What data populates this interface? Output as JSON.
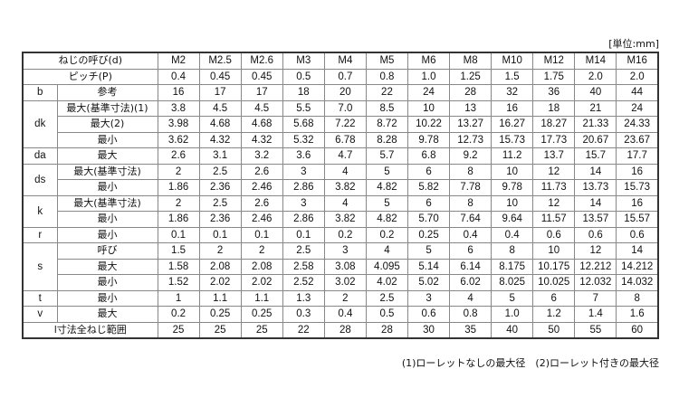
{
  "unit_label": "[単位:mm]",
  "header": {
    "label": "ねじの呼び(d)",
    "sizes": [
      "M2",
      "M2.5",
      "M2.6",
      "M3",
      "M4",
      "M5",
      "M6",
      "M8",
      "M10",
      "M12",
      "M14",
      "M16"
    ]
  },
  "pitch": {
    "label": "ピッチ(P)",
    "values": [
      "0.4",
      "0.45",
      "0.45",
      "0.5",
      "0.7",
      "0.8",
      "1.0",
      "1.25",
      "1.5",
      "1.75",
      "2.0",
      "2.0"
    ]
  },
  "groups": [
    {
      "symbol": "b",
      "rows": [
        {
          "label": "参考",
          "values": [
            "16",
            "17",
            "17",
            "18",
            "20",
            "22",
            "24",
            "28",
            "32",
            "36",
            "40",
            "44"
          ]
        }
      ]
    },
    {
      "symbol": "dk",
      "rows": [
        {
          "label": "最大(基準寸法)(1)",
          "values": [
            "3.8",
            "4.5",
            "4.5",
            "5.5",
            "7.0",
            "8.5",
            "10",
            "13",
            "16",
            "18",
            "21",
            "24"
          ]
        },
        {
          "label": "最大(2)",
          "values": [
            "3.98",
            "4.68",
            "4.68",
            "5.68",
            "7.22",
            "8.72",
            "10.22",
            "13.27",
            "16.27",
            "18.27",
            "21.33",
            "24.33"
          ]
        },
        {
          "label": "最小",
          "values": [
            "3.62",
            "4.32",
            "4.32",
            "5.32",
            "6.78",
            "8.28",
            "9.78",
            "12.73",
            "15.73",
            "17.73",
            "20.67",
            "23.67"
          ]
        }
      ]
    },
    {
      "symbol": "da",
      "rows": [
        {
          "label": "最大",
          "values": [
            "2.6",
            "3.1",
            "3.2",
            "3.6",
            "4.7",
            "5.7",
            "6.8",
            "9.2",
            "11.2",
            "13.7",
            "15.7",
            "17.7"
          ]
        }
      ]
    },
    {
      "symbol": "ds",
      "rows": [
        {
          "label": "最大(基準寸法)",
          "values": [
            "2",
            "2.5",
            "2.6",
            "3",
            "4",
            "5",
            "6",
            "8",
            "10",
            "12",
            "14",
            "16"
          ]
        },
        {
          "label": "最小",
          "values": [
            "1.86",
            "2.36",
            "2.46",
            "2.86",
            "3.82",
            "4.82",
            "5.82",
            "7.78",
            "9.78",
            "11.73",
            "13.73",
            "15.73"
          ]
        }
      ]
    },
    {
      "symbol": "k",
      "rows": [
        {
          "label": "最大(基準寸法)",
          "values": [
            "2",
            "2.5",
            "2.6",
            "3",
            "4",
            "5",
            "6",
            "8",
            "10",
            "12",
            "14",
            "16"
          ]
        },
        {
          "label": "最小",
          "values": [
            "1.86",
            "2.36",
            "2.46",
            "2.86",
            "3.82",
            "4.82",
            "5.70",
            "7.64",
            "9.64",
            "11.57",
            "13.57",
            "15.57"
          ]
        }
      ]
    },
    {
      "symbol": "r",
      "rows": [
        {
          "label": "最小",
          "values": [
            "0.1",
            "0.1",
            "0.1",
            "0.1",
            "0.2",
            "0.2",
            "0.25",
            "0.4",
            "0.4",
            "0.6",
            "0.6",
            "0.6"
          ]
        }
      ]
    },
    {
      "symbol": "s",
      "rows": [
        {
          "label": "呼び",
          "values": [
            "1.5",
            "2",
            "2",
            "2.5",
            "3",
            "4",
            "5",
            "6",
            "8",
            "10",
            "12",
            "14"
          ]
        },
        {
          "label": "最大",
          "values": [
            "1.58",
            "2.08",
            "2.08",
            "2.58",
            "3.08",
            "4.095",
            "5.14",
            "6.14",
            "8.175",
            "10.175",
            "12.212",
            "14.212"
          ]
        },
        {
          "label": "最小",
          "values": [
            "1.52",
            "2.02",
            "2.02",
            "2.52",
            "3.02",
            "4.02",
            "5.02",
            "6.02",
            "8.025",
            "10.025",
            "12.032",
            "14.032"
          ]
        }
      ]
    },
    {
      "symbol": "t",
      "rows": [
        {
          "label": "最小",
          "values": [
            "1",
            "1.1",
            "1.1",
            "1.3",
            "2",
            "2.5",
            "3",
            "4",
            "5",
            "6",
            "7",
            "8"
          ]
        }
      ]
    },
    {
      "symbol": "v",
      "rows": [
        {
          "label": "最大",
          "values": [
            "0.2",
            "0.25",
            "0.25",
            "0.3",
            "0.4",
            "0.5",
            "0.6",
            "0.8",
            "1.0",
            "1.2",
            "1.4",
            "1.6"
          ]
        }
      ]
    }
  ],
  "full_thread": {
    "label": "l寸法全ねじ範囲",
    "values": [
      "25",
      "25",
      "25",
      "22",
      "28",
      "28",
      "30",
      "35",
      "40",
      "50",
      "55",
      "60"
    ]
  },
  "footnote": "(1)ローレットなしの最大径　(2)ローレット付きの最大径"
}
